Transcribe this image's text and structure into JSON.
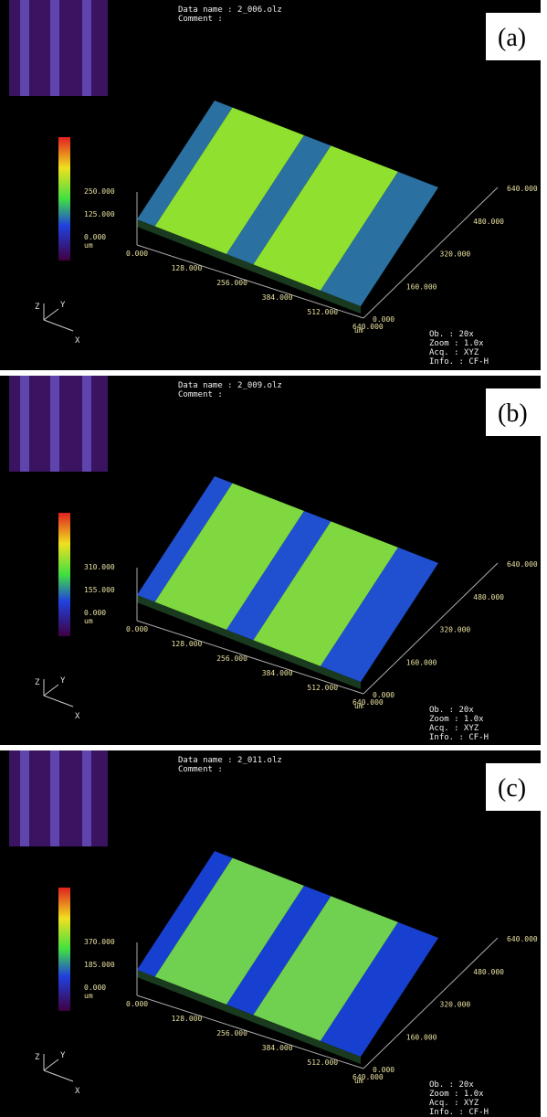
{
  "panels": [
    {
      "label": "(a)",
      "data_name": "Data name  :  2_006.olz",
      "comment": "Comment    :",
      "colorbar_ticks": [
        "250.000",
        "125.000",
        "0.000"
      ],
      "colorbar_unit": "um",
      "x_ticks": [
        "0.000",
        "128.000",
        "256.000",
        "384.000",
        "512.000",
        "640.000"
      ],
      "x_unit": "um",
      "y_ticks": [
        "0.000",
        "160.000",
        "320.000",
        "480.000",
        "640.000"
      ],
      "axes": [
        "Z",
        "Y",
        "X"
      ],
      "info": [
        "Ob.   :  20x",
        "Zoom  :  1.0x",
        "Acq.  :  XYZ",
        "Info. :  CF-H"
      ]
    },
    {
      "label": "(b)",
      "data_name": "Data name  :  2_009.olz",
      "comment": "Comment    :",
      "colorbar_ticks": [
        "310.000",
        "155.000",
        "0.000"
      ],
      "colorbar_unit": "um",
      "x_ticks": [
        "0.000",
        "128.000",
        "256.000",
        "384.000",
        "512.000",
        "640.000"
      ],
      "x_unit": "um",
      "y_ticks": [
        "0.000",
        "160.000",
        "320.000",
        "480.000",
        "640.000"
      ],
      "axes": [
        "Z",
        "Y",
        "X"
      ],
      "info": [
        "Ob.   :  20x",
        "Zoom  :  1.0x",
        "Acq.  :  XYZ",
        "Info. :  CF-H"
      ]
    },
    {
      "label": "(c)",
      "data_name": "Data name  :  2_011.olz",
      "comment": "Comment    :",
      "colorbar_ticks": [
        "370.000",
        "185.000",
        "0.000"
      ],
      "colorbar_unit": "um",
      "x_ticks": [
        "0.000",
        "128.000",
        "256.000",
        "384.000",
        "512.000",
        "640.000"
      ],
      "x_unit": "um",
      "y_ticks": [
        "0.000",
        "160.000",
        "320.000",
        "480.000",
        "640.000"
      ],
      "axes": [
        "Z",
        "Y",
        "X"
      ],
      "info": [
        "Ob.   :  20x",
        "Zoom  :  1.0x",
        "Acq.  :  XYZ",
        "Info. :  CF-H"
      ]
    }
  ]
}
